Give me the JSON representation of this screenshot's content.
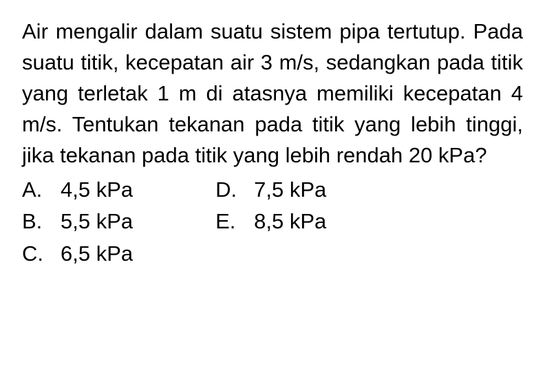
{
  "question": {
    "text": "Air mengalir dalam suatu sistem pipa tertutup. Pada suatu titik, kecepatan air 3 m/s, sedangkan pada titik yang ter­letak 1 m di atasnya memiliki kecepat­an 4 m/s. Tentukan tekanan pada titik yang lebih tinggi, jika tekanan pada titik yang lebih rendah 20 kPa?",
    "font_size": 31,
    "color": "#000000",
    "background_color": "#ffffff"
  },
  "options": {
    "left": [
      {
        "letter": "A.",
        "value": "4,5 kPa"
      },
      {
        "letter": "B.",
        "value": "5,5 kPa"
      },
      {
        "letter": "C.",
        "value": "6,5 kPa"
      }
    ],
    "right": [
      {
        "letter": "D.",
        "value": "7,5 kPa"
      },
      {
        "letter": "E.",
        "value": "8,5 kPa"
      }
    ],
    "font_size": 31,
    "color": "#000000"
  }
}
